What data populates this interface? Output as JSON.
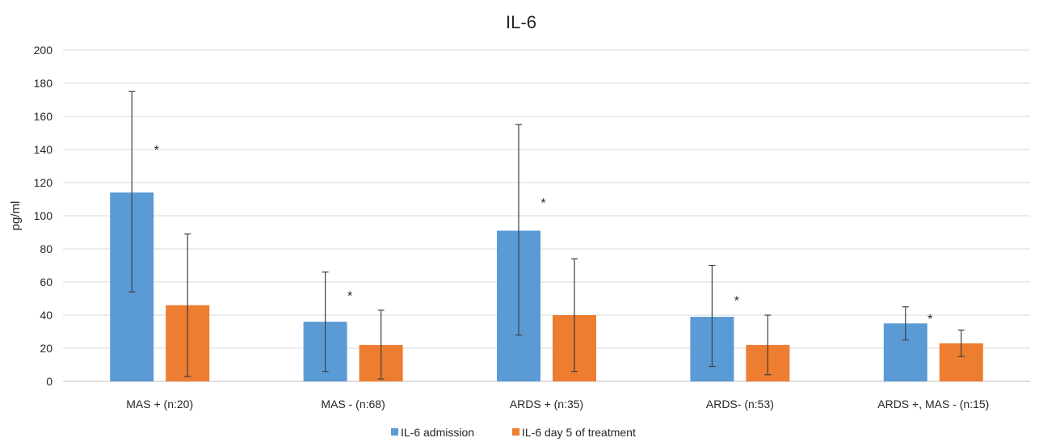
{
  "chart_data": {
    "type": "bar",
    "title": "IL-6",
    "ylabel": "pg/ml",
    "xlabel": "",
    "ylim": [
      0,
      200
    ],
    "yticks": [
      0,
      20,
      40,
      60,
      80,
      100,
      120,
      140,
      160,
      180,
      200
    ],
    "categories": [
      "MAS + (n:20)",
      "MAS - (n:68)",
      "ARDS + (n:35)",
      "ARDS- (n:53)",
      "ARDS +, MAS - (n:15)"
    ],
    "series": [
      {
        "name": "IL-6 admission",
        "color": "#5B9BD5",
        "values": [
          114,
          36,
          91,
          39,
          35
        ],
        "error_low": [
          54,
          6,
          28,
          9,
          25
        ],
        "error_high": [
          175,
          66,
          155,
          70,
          45
        ]
      },
      {
        "name": "IL-6 day 5 of treatment",
        "color": "#ED7D31",
        "values": [
          46,
          22,
          40,
          22,
          23
        ],
        "error_low": [
          3,
          1.5,
          6,
          4,
          15
        ],
        "error_high": [
          89,
          43,
          74,
          40,
          31
        ]
      }
    ],
    "annotations": [
      {
        "text": "*",
        "category": 0,
        "y": 142
      },
      {
        "text": "*",
        "category": 1,
        "y": 54
      },
      {
        "text": "*",
        "category": 2,
        "y": 110
      },
      {
        "text": "*",
        "category": 3,
        "y": 51
      },
      {
        "text": "*",
        "category": 4,
        "y": 40
      }
    ],
    "grid": true,
    "legend": "bottom-center"
  }
}
